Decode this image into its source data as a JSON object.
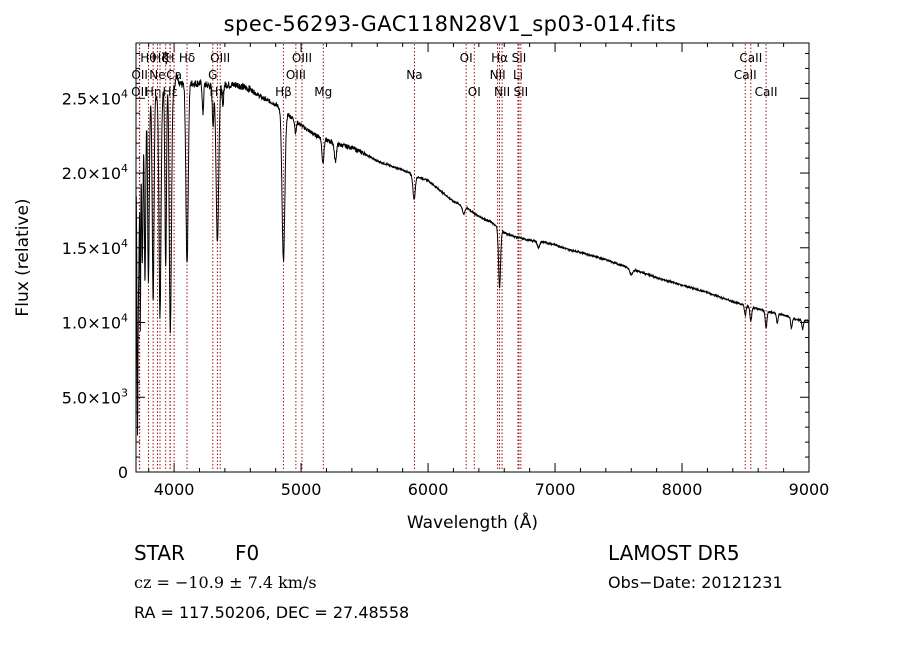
{
  "figure": {
    "title": "spec-56293-GAC118N28V1_sp03-014.fits",
    "object_type": "STAR",
    "subclass": "F0",
    "survey": "LAMOST  DR5",
    "cz_text": "cz = −10.9 ± 7.4 km/s",
    "obs_date": "Obs−Date: 20121231",
    "radec_text": "RA = 117.50206, DEC =  27.48558"
  },
  "chart_data": {
    "type": "line",
    "title": "spec-56293-GAC118N28V1_sp03-014.fits",
    "xlabel": "Wavelength (Å)",
    "ylabel": "Flux (relative)",
    "xlim": [
      3700,
      9000
    ],
    "ylim": [
      0,
      28700
    ],
    "grid": false,
    "line_color": "#000000",
    "marker_color": "#a01010",
    "x_ticks": [
      {
        "value": 4000,
        "label": "4000"
      },
      {
        "value": 5000,
        "label": "5000"
      },
      {
        "value": 6000,
        "label": "6000"
      },
      {
        "value": 7000,
        "label": "7000"
      },
      {
        "value": 8000,
        "label": "8000"
      },
      {
        "value": 9000,
        "label": "9000"
      }
    ],
    "y_ticks": [
      {
        "value": 0,
        "mant": "0",
        "exp": ""
      },
      {
        "value": 5000,
        "mant": "5.0×10",
        "exp": "3"
      },
      {
        "value": 10000,
        "mant": "1.0×10",
        "exp": "4"
      },
      {
        "value": 15000,
        "mant": "1.5×10",
        "exp": "4"
      },
      {
        "value": 20000,
        "mant": "2.0×10",
        "exp": "4"
      },
      {
        "value": 25000,
        "mant": "2.5×10",
        "exp": "4"
      }
    ],
    "continuum": [
      [
        3700,
        19000
      ],
      [
        3750,
        23000
      ],
      [
        3800,
        24800
      ],
      [
        3900,
        25400
      ],
      [
        4000,
        25800
      ],
      [
        4100,
        26000
      ],
      [
        4200,
        26000
      ],
      [
        4300,
        25800
      ],
      [
        4400,
        25900
      ],
      [
        4500,
        25900
      ],
      [
        4600,
        25600
      ],
      [
        4700,
        25000
      ],
      [
        4800,
        24600
      ],
      [
        4900,
        23900
      ],
      [
        5000,
        23200
      ],
      [
        5100,
        22600
      ],
      [
        5200,
        22200
      ],
      [
        5300,
        21900
      ],
      [
        5400,
        21700
      ],
      [
        5500,
        21300
      ],
      [
        5600,
        20800
      ],
      [
        5700,
        20500
      ],
      [
        5800,
        20200
      ],
      [
        5900,
        19800
      ],
      [
        6000,
        19500
      ],
      [
        6100,
        18800
      ],
      [
        6200,
        18100
      ],
      [
        6300,
        17700
      ],
      [
        6400,
        17100
      ],
      [
        6500,
        16700
      ],
      [
        6600,
        16000
      ],
      [
        6700,
        15700
      ],
      [
        6800,
        15500
      ],
      [
        6900,
        15400
      ],
      [
        7000,
        15200
      ],
      [
        7100,
        14900
      ],
      [
        7200,
        14700
      ],
      [
        7400,
        14200
      ],
      [
        7600,
        13600
      ],
      [
        7800,
        13000
      ],
      [
        8000,
        12500
      ],
      [
        8200,
        12000
      ],
      [
        8400,
        11400
      ],
      [
        8600,
        10900
      ],
      [
        8800,
        10500
      ],
      [
        8900,
        10200
      ],
      [
        8980,
        10100
      ]
    ],
    "absorption_features": [
      {
        "center": 3712,
        "depth": 17000,
        "width": 4
      },
      {
        "center": 3722,
        "depth": 7000,
        "width": 4
      },
      {
        "center": 3734,
        "depth": 12000,
        "width": 3
      },
      {
        "center": 3750,
        "depth": 9000,
        "width": 5
      },
      {
        "center": 3771,
        "depth": 11000,
        "width": 5
      },
      {
        "center": 3798,
        "depth": 12000,
        "width": 6
      },
      {
        "center": 3835,
        "depth": 13500,
        "width": 7
      },
      {
        "center": 3889,
        "depth": 15000,
        "width": 8
      },
      {
        "center": 3934,
        "depth": 12000,
        "width": 6
      },
      {
        "center": 3970,
        "depth": 16500,
        "width": 9
      },
      {
        "center": 4102,
        "depth": 12000,
        "width": 9
      },
      {
        "center": 4227,
        "depth": 2000,
        "width": 5
      },
      {
        "center": 4307,
        "depth": 2500,
        "width": 6
      },
      {
        "center": 4341,
        "depth": 10500,
        "width": 10
      },
      {
        "center": 4384,
        "depth": 1500,
        "width": 5
      },
      {
        "center": 4861,
        "depth": 10000,
        "width": 11
      },
      {
        "center": 4957,
        "depth": 800,
        "width": 6
      },
      {
        "center": 5172,
        "depth": 1600,
        "width": 8
      },
      {
        "center": 5270,
        "depth": 1200,
        "width": 8
      },
      {
        "center": 5890,
        "depth": 1600,
        "width": 9
      },
      {
        "center": 6280,
        "depth": 500,
        "width": 10
      },
      {
        "center": 6563,
        "depth": 3900,
        "width": 8
      },
      {
        "center": 6870,
        "depth": 400,
        "width": 10
      },
      {
        "center": 7600,
        "depth": 400,
        "width": 12
      },
      {
        "center": 8498,
        "depth": 700,
        "width": 6
      },
      {
        "center": 8542,
        "depth": 900,
        "width": 7
      },
      {
        "center": 8662,
        "depth": 1100,
        "width": 7
      },
      {
        "center": 8750,
        "depth": 600,
        "width": 6
      },
      {
        "center": 8862,
        "depth": 700,
        "width": 6
      },
      {
        "center": 8950,
        "depth": 600,
        "width": 6
      }
    ],
    "emission_features": [
      {
        "center": 3955,
        "height": 1800,
        "width": 8
      },
      {
        "center": 4020,
        "height": 700,
        "width": 8
      }
    ],
    "line_markers": [
      {
        "wavelength": 3727,
        "label": "OII",
        "row": 2
      },
      {
        "wavelength": 3729,
        "label": "OII",
        "row": 1
      },
      {
        "wavelength": 3798,
        "label": "Hθ",
        "row": 0
      },
      {
        "wavelength": 3835,
        "label": "Hη",
        "row": 2
      },
      {
        "wavelength": 3869,
        "label": "Ne",
        "row": 1
      },
      {
        "wavelength": 3889,
        "label": "Hζ",
        "row": 0
      },
      {
        "wavelength": 3934,
        "label": "K",
        "row": 0
      },
      {
        "wavelength": 3968,
        "label": "H",
        "row": 0
      },
      {
        "wavelength": 3970,
        "label": "Hε",
        "row": 2
      },
      {
        "wavelength": 4000,
        "label": "Ca",
        "row": 1
      },
      {
        "wavelength": 4102,
        "label": "Hδ",
        "row": 0
      },
      {
        "wavelength": 4305,
        "label": "G",
        "row": 1
      },
      {
        "wavelength": 4341,
        "label": "Hγ",
        "row": 2
      },
      {
        "wavelength": 4363,
        "label": "OIII",
        "row": 0
      },
      {
        "wavelength": 4861,
        "label": "Hβ",
        "row": 2
      },
      {
        "wavelength": 4959,
        "label": "OIII",
        "row": 1
      },
      {
        "wavelength": 5007,
        "label": "OIII",
        "row": 0
      },
      {
        "wavelength": 5175,
        "label": "Mg",
        "row": 2
      },
      {
        "wavelength": 5893,
        "label": "Na",
        "row": 1
      },
      {
        "wavelength": 6300,
        "label": "OI",
        "row": 0
      },
      {
        "wavelength": 6364,
        "label": "OI",
        "row": 2
      },
      {
        "wavelength": 6548,
        "label": "NII",
        "row": 1
      },
      {
        "wavelength": 6563,
        "label": "Hα",
        "row": 0
      },
      {
        "wavelength": 6583,
        "label": "NII",
        "row": 2
      },
      {
        "wavelength": 6708,
        "label": "Li",
        "row": 1
      },
      {
        "wavelength": 6716,
        "label": "SII",
        "row": 0
      },
      {
        "wavelength": 6731,
        "label": "SII",
        "row": 2
      },
      {
        "wavelength": 8498,
        "label": "CaII",
        "row": 1
      },
      {
        "wavelength": 8542,
        "label": "CaII",
        "row": 0
      },
      {
        "wavelength": 8662,
        "label": "CaII",
        "row": 2
      }
    ]
  }
}
